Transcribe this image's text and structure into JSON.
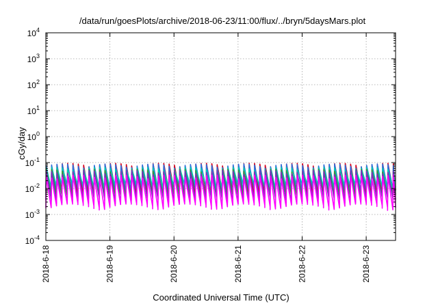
{
  "chart_data": {
    "type": "line",
    "title": "/data/run/goesPlots/archive/2018-06-23/11:00/flux/../bryn/5daysMars.plot",
    "xlabel": "Coordinated Universal Time (UTC)",
    "ylabel": "cGy/day",
    "y_scale": "log",
    "ylim": [
      0.0001,
      10000
    ],
    "xlim": [
      "2018-06-18T00:00",
      "2018-06-23T11:00"
    ],
    "grid": true,
    "legend": "none",
    "x_ticks": [
      "2018-6-18",
      "2018-6-19",
      "2018-6-20",
      "2018-6-21",
      "2018-6-22",
      "2018-6-23"
    ],
    "y_ticks": [
      {
        "base": "10",
        "exp": "-4"
      },
      {
        "base": "10",
        "exp": "-3"
      },
      {
        "base": "10",
        "exp": "-2"
      },
      {
        "base": "10",
        "exp": "-1"
      },
      {
        "base": "10",
        "exp": "0"
      },
      {
        "base": "10",
        "exp": "1"
      },
      {
        "base": "10",
        "exp": "2"
      },
      {
        "base": "10",
        "exp": "3"
      },
      {
        "base": "10",
        "exp": "4"
      }
    ],
    "cycle_hours": 2,
    "series": [
      {
        "color": "#d6001c",
        "peak": 0.085,
        "trough": 0.006
      },
      {
        "color": "#2f6fdb",
        "peak": 0.08,
        "trough": 0.007
      },
      {
        "color": "#00c7b7",
        "peak": 0.06,
        "trough": 0.01
      },
      {
        "color": "#3b8f3b",
        "peak": 0.05,
        "trough": 0.004
      },
      {
        "color": "#7b2fbe",
        "peak": 0.045,
        "trough": 0.003
      },
      {
        "color": "#ff00ff",
        "peak": 0.03,
        "trough": 0.0018
      }
    ]
  }
}
